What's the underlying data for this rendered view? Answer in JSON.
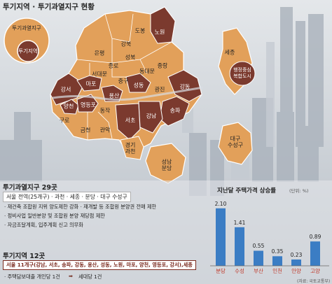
{
  "title": "투기지역 · 투기과열지구 현황",
  "legend": {
    "outer": "투기과열지구",
    "inner": "투기지역"
  },
  "colors": {
    "overheated": "#e2a05a",
    "speculation": "#7b3a2e",
    "outline": "#ffffff",
    "bar": "#3b7dc4",
    "accent": "#c0392b"
  },
  "seoul_districts": [
    {
      "name": "도봉",
      "type": "overheated"
    },
    {
      "name": "노원",
      "type": "speculation"
    },
    {
      "name": "강북",
      "type": "overheated"
    },
    {
      "name": "은평",
      "type": "overheated"
    },
    {
      "name": "성북",
      "type": "overheated"
    },
    {
      "name": "종로",
      "type": "overheated"
    },
    {
      "name": "중랑",
      "type": "overheated"
    },
    {
      "name": "서대문",
      "type": "overheated"
    },
    {
      "name": "동대문",
      "type": "overheated"
    },
    {
      "name": "중구",
      "type": "overheated"
    },
    {
      "name": "마포",
      "type": "speculation"
    },
    {
      "name": "용산",
      "type": "speculation"
    },
    {
      "name": "성동",
      "type": "speculation"
    },
    {
      "name": "광진",
      "type": "overheated"
    },
    {
      "name": "강서",
      "type": "speculation"
    },
    {
      "name": "양천",
      "type": "speculation"
    },
    {
      "name": "영등포",
      "type": "speculation"
    },
    {
      "name": "구로",
      "type": "overheated"
    },
    {
      "name": "동작",
      "type": "overheated"
    },
    {
      "name": "금천",
      "type": "overheated"
    },
    {
      "name": "관악",
      "type": "overheated"
    },
    {
      "name": "서초",
      "type": "speculation"
    },
    {
      "name": "강남",
      "type": "speculation"
    },
    {
      "name": "송파",
      "type": "speculation"
    },
    {
      "name": "강동",
      "type": "speculation"
    }
  ],
  "other_regions": [
    {
      "name": "경기\n과천",
      "type": "overheated"
    },
    {
      "name": "성남\n분당",
      "type": "overheated"
    },
    {
      "name": "세종",
      "type": "overheated"
    },
    {
      "name": "행정중심\n복합도시",
      "type": "speculation"
    },
    {
      "name": "대구\n수성구",
      "type": "overheated"
    }
  ],
  "overheated_section": {
    "title": "투기과열지구 29곳",
    "summary": "서울 전역(25개구) · 과천 · 세종 · 분당 · 대구 수성구",
    "bullets": [
      "· 재건축 조합원 지위 양도제한 강화 · 재개발 등 조합원 분양권 전매 제한",
      "· 정비사업 일반분양 및 조합원 분양 재당첨 제한",
      "· 자금조달계획, 입주계획 신고 의무화"
    ]
  },
  "speculation_section": {
    "title": "투기지역 12곳",
    "summary": "서울 11개구(강남, 서초, 송파, 강동, 용산, 성동, 노원, 마포, 양천, 영등포, 강서),세종",
    "bullet_left": "· 주택담보대출 개인당 1건",
    "arrow": "➡",
    "bullet_right": "세대당 1건"
  },
  "chart_data": {
    "type": "bar",
    "title": "지난달 주택가격 상승률",
    "unit": "(단위: %)",
    "categories": [
      "분당",
      "수성",
      "부산",
      "인천",
      "안양",
      "고양"
    ],
    "values": [
      2.1,
      1.41,
      0.55,
      0.35,
      0.23,
      0.89
    ],
    "value_labels": [
      "2.10",
      "1.41",
      "0.55",
      "0.35",
      "0.23",
      "0.89"
    ],
    "ylim": [
      0,
      2.3
    ]
  },
  "source": "(자료: 국토교통부)"
}
